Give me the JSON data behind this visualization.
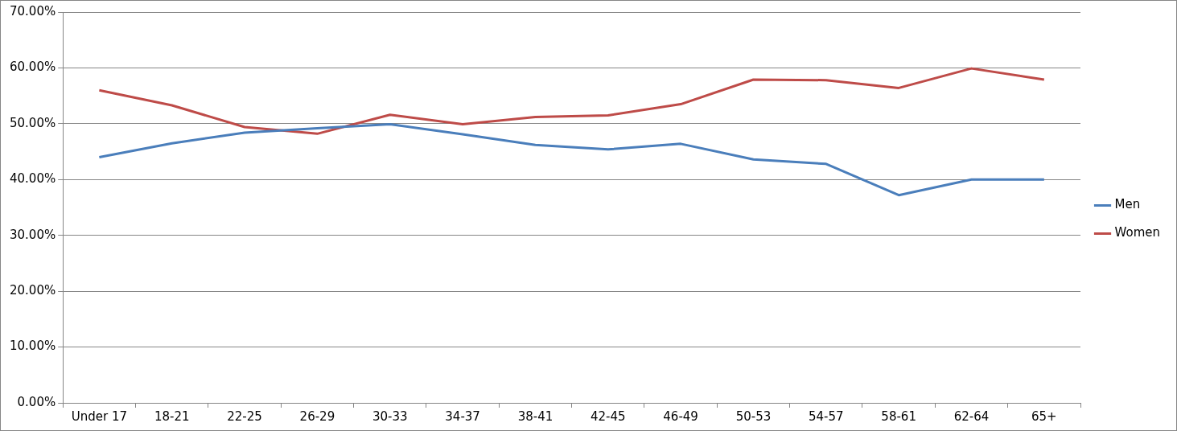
{
  "chart_data": {
    "type": "line",
    "categories": [
      "Under 17",
      "18-21",
      "22-25",
      "26-29",
      "30-33",
      "34-37",
      "38-41",
      "42-45",
      "46-49",
      "50-53",
      "54-57",
      "58-61",
      "62-64",
      "65+"
    ],
    "series": [
      {
        "name": "Men",
        "color": "#4a7ebb",
        "values": [
          44,
          46.5,
          48.4,
          49.2,
          49.9,
          48.1,
          46.2,
          45.4,
          46.4,
          43.6,
          42.8,
          37.2,
          40,
          40
        ]
      },
      {
        "name": "Women",
        "color": "#be4b48",
        "values": [
          56,
          53.3,
          49.4,
          48.2,
          51.6,
          49.9,
          51.2,
          51.5,
          53.5,
          57.9,
          57.8,
          56.4,
          59.9,
          57.9
        ]
      }
    ],
    "ylim": [
      0,
      70
    ],
    "yticks": [
      {
        "value": 0,
        "label": "0.00%"
      },
      {
        "value": 10,
        "label": "10.00%"
      },
      {
        "value": 20,
        "label": "20.00%"
      },
      {
        "value": 30,
        "label": "30.00%"
      },
      {
        "value": 40,
        "label": "40.00%"
      },
      {
        "value": 50,
        "label": "50.00%"
      },
      {
        "value": 60,
        "label": "60.00%"
      },
      {
        "value": 70,
        "label": "70.00%"
      }
    ],
    "grid": "y",
    "legend": "right",
    "marker": "none",
    "line_style": "solid"
  }
}
